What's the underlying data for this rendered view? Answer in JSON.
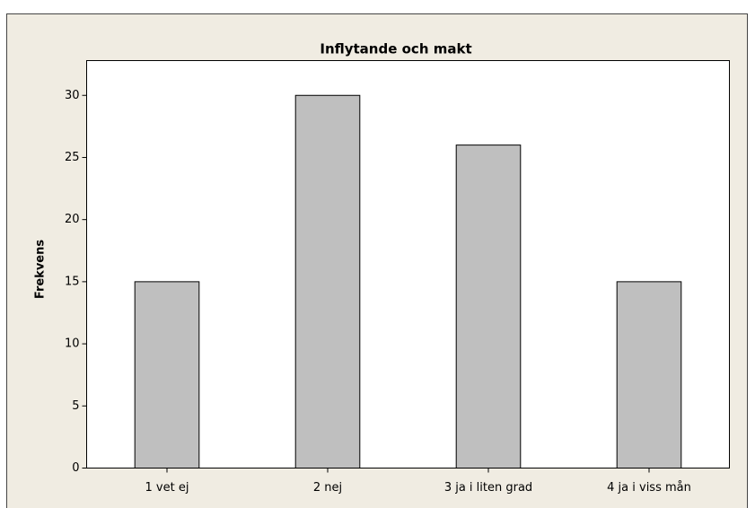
{
  "chart_data": {
    "type": "bar",
    "title": "Inflytande och makt",
    "y_label": "Frekvens",
    "categories": [
      "1 vet ej",
      "2 nej",
      "3 ja i liten grad",
      "4 ja i viss mån"
    ],
    "values": [
      15,
      30,
      26,
      15
    ],
    "color": "#bfbfbf",
    "ylim": [
      0,
      32.8
    ],
    "yticks": [
      0,
      5,
      10,
      15,
      20,
      25,
      30
    ]
  }
}
